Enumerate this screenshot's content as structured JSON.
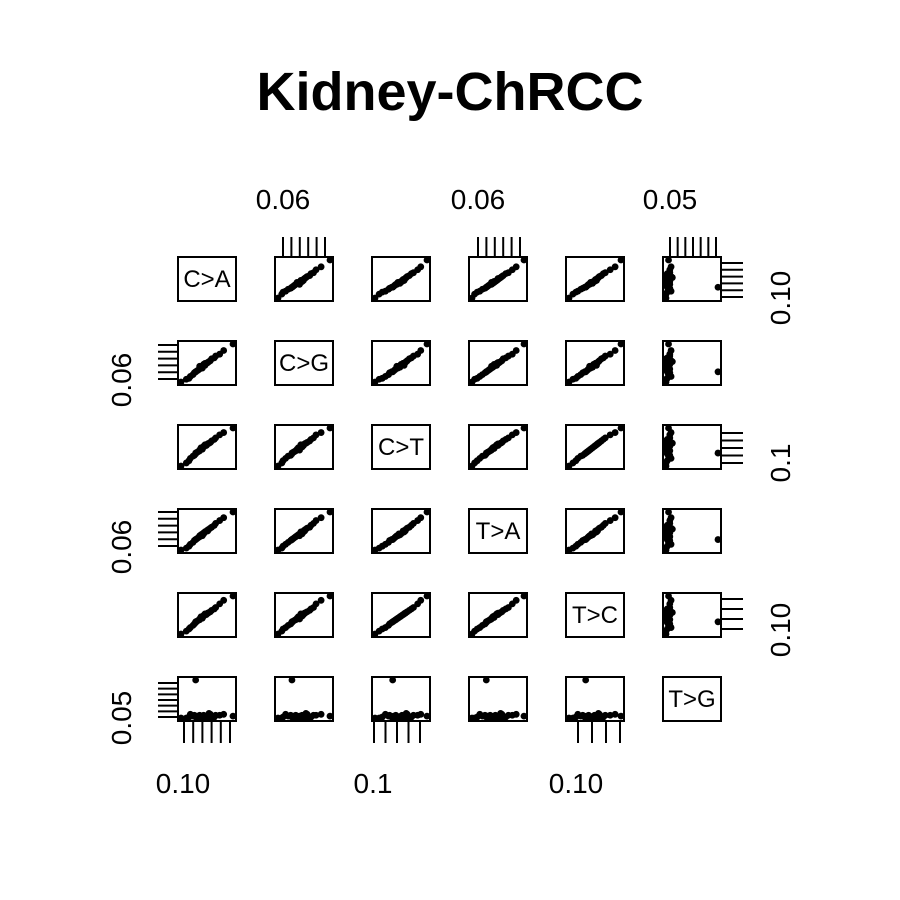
{
  "chart_data": {
    "type": "scatter",
    "title": "Kidney-ChRCC",
    "variables": [
      "C>A",
      "C>G",
      "C>T",
      "T>A",
      "T>C",
      "T>G"
    ],
    "axis_tick_labels": {
      "top": [
        "0.06",
        "0.06",
        "0.05"
      ],
      "bottom": [
        "0.10",
        "0.1",
        "0.10"
      ],
      "left": [
        "0.06",
        "0.06",
        "0.05"
      ],
      "right": [
        "0.10",
        "0.1",
        "0.10"
      ]
    },
    "columns": {
      "C>A": [
        0.052,
        0.058,
        0.061,
        0.063,
        0.066,
        0.068,
        0.071,
        0.074,
        0.077,
        0.069,
        0.064,
        0.072,
        0.059,
        0.067,
        0.081,
        0.07,
        0.065,
        0.075,
        0.062,
        0.091,
        0.073,
        0.068,
        0.056,
        0.078,
        0.066,
        0.07,
        0.063,
        0.084,
        0.069,
        0.072
      ],
      "C>G": [
        0.041,
        0.045,
        0.049,
        0.052,
        0.055,
        0.058,
        0.061,
        0.064,
        0.067,
        0.06,
        0.053,
        0.062,
        0.047,
        0.057,
        0.071,
        0.059,
        0.054,
        0.066,
        0.051,
        0.082,
        0.063,
        0.056,
        0.044,
        0.069,
        0.058,
        0.061,
        0.052,
        0.075,
        0.06,
        0.062
      ],
      "C>T": [
        0.105,
        0.112,
        0.118,
        0.121,
        0.125,
        0.128,
        0.132,
        0.136,
        0.14,
        0.131,
        0.123,
        0.134,
        0.115,
        0.129,
        0.146,
        0.133,
        0.124,
        0.138,
        0.119,
        0.155,
        0.135,
        0.127,
        0.109,
        0.142,
        0.126,
        0.132,
        0.122,
        0.149,
        0.13,
        0.134
      ],
      "T>A": [
        0.048,
        0.052,
        0.056,
        0.059,
        0.062,
        0.065,
        0.068,
        0.071,
        0.074,
        0.066,
        0.06,
        0.069,
        0.054,
        0.064,
        0.079,
        0.067,
        0.061,
        0.072,
        0.058,
        0.088,
        0.07,
        0.063,
        0.05,
        0.076,
        0.063,
        0.067,
        0.059,
        0.082,
        0.065,
        0.068
      ],
      "T>C": [
        0.092,
        0.099,
        0.104,
        0.108,
        0.112,
        0.115,
        0.119,
        0.123,
        0.127,
        0.118,
        0.11,
        0.121,
        0.101,
        0.116,
        0.134,
        0.12,
        0.111,
        0.125,
        0.106,
        0.145,
        0.122,
        0.114,
        0.096,
        0.129,
        0.113,
        0.119,
        0.109,
        0.139,
        0.117,
        0.121
      ],
      "T>G": [
        0.031,
        0.032,
        0.033,
        0.032,
        0.034,
        0.031,
        0.033,
        0.035,
        0.032,
        0.034,
        0.033,
        0.031,
        0.035,
        0.032,
        0.034,
        0.033,
        0.032,
        0.031,
        0.034,
        0.033,
        0.036,
        0.032,
        0.031,
        0.034,
        0.033,
        0.032,
        0.072,
        0.035,
        0.033,
        0.032
      ]
    },
    "grid": false,
    "legend": "none"
  }
}
